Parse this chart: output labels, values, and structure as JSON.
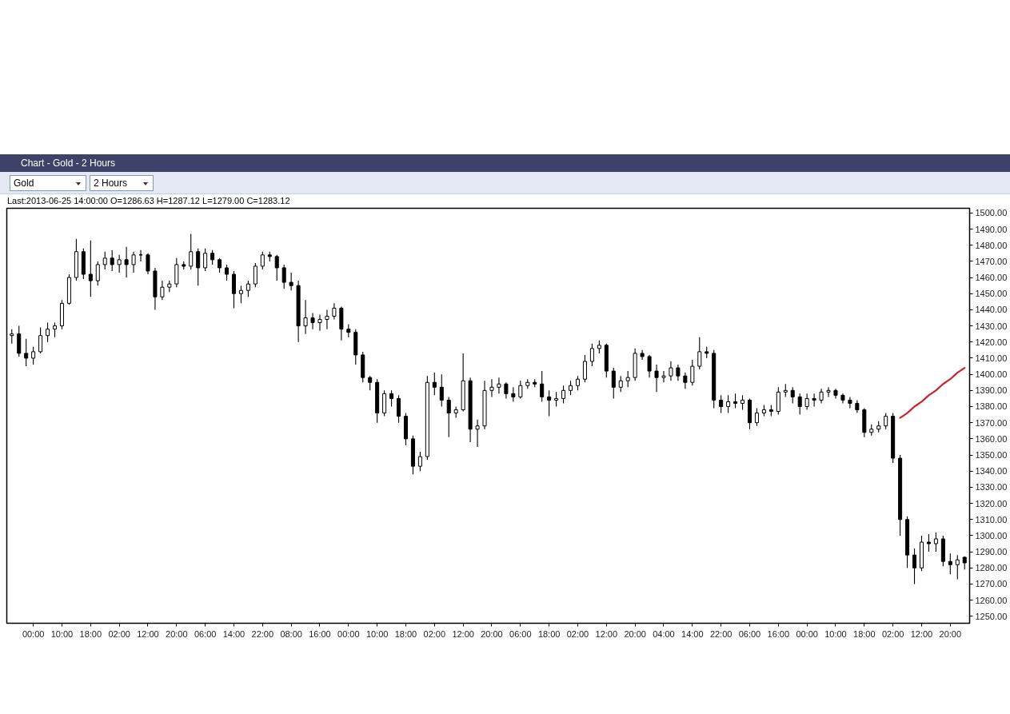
{
  "chart_data": {
    "type": "candlestick",
    "title": "Chart - Gold - 2 Hours",
    "subtitle": "Last:2013-06-25 14:00:00 O=1286.63 H=1287.12 L=1279.00 C=1283.12",
    "annotations": [
      "Gold",
      "2 Hours"
    ],
    "color": "#000000",
    "categories": [
      null,
      null,
      null,
      "00:00",
      null,
      null,
      null,
      "10:00",
      null,
      null,
      null,
      "18:00",
      null,
      null,
      null,
      "02:00",
      null,
      null,
      null,
      "12:00",
      null,
      null,
      null,
      "20:00",
      null,
      null,
      null,
      "06:00",
      null,
      null,
      null,
      "14:00",
      null,
      null,
      null,
      "22:00",
      null,
      null,
      null,
      "08:00",
      null,
      null,
      null,
      "16:00",
      null,
      null,
      null,
      "00:00",
      null,
      null,
      null,
      "10:00",
      null,
      null,
      null,
      "18:00",
      null,
      null,
      null,
      "02:00",
      null,
      null,
      null,
      "12:00",
      null,
      null,
      null,
      "20:00",
      null,
      null,
      null,
      "06:00",
      null,
      null,
      null,
      "18:00",
      null,
      null,
      null,
      "02:00",
      null,
      null,
      null,
      "12:00",
      null,
      null,
      null,
      "20:00",
      null,
      null,
      null,
      "04:00",
      null,
      null,
      null,
      "14:00",
      null,
      null,
      null,
      "22:00",
      null,
      null,
      null,
      "06:00",
      null,
      null,
      null,
      "16:00",
      null,
      null,
      null,
      "00:00",
      null,
      null,
      null,
      "10:00",
      null,
      null,
      null,
      "18:00",
      null,
      null,
      null,
      "02:00",
      null,
      null,
      null,
      "12:00",
      null,
      null,
      null,
      "20:00",
      null,
      null
    ],
    "ohlc": [
      [
        1424,
        1428,
        1419,
        1425
      ],
      [
        1425,
        1430,
        1411,
        1413
      ],
      [
        1413,
        1422,
        1405,
        1410
      ],
      [
        1410,
        1417,
        1406,
        1414
      ],
      [
        1414,
        1429,
        1413,
        1424
      ],
      [
        1424,
        1432,
        1420,
        1428
      ],
      [
        1428,
        1432,
        1423,
        1430
      ],
      [
        1430,
        1446,
        1428,
        1444
      ],
      [
        1444,
        1462,
        1443,
        1460
      ],
      [
        1460,
        1484,
        1458,
        1476
      ],
      [
        1476,
        1478,
        1459,
        1462
      ],
      [
        1462,
        1483,
        1448,
        1458
      ],
      [
        1458,
        1470,
        1455,
        1468
      ],
      [
        1468,
        1476,
        1465,
        1472
      ],
      [
        1472,
        1477,
        1464,
        1468
      ],
      [
        1468,
        1474,
        1463,
        1471
      ],
      [
        1471,
        1479,
        1460,
        1468
      ],
      [
        1468,
        1476,
        1463,
        1474
      ],
      [
        1474,
        1477,
        1470,
        1474
      ],
      [
        1474,
        1475,
        1462,
        1464
      ],
      [
        1464,
        1466,
        1440,
        1448
      ],
      [
        1448,
        1458,
        1446,
        1454
      ],
      [
        1454,
        1458,
        1451,
        1456
      ],
      [
        1456,
        1472,
        1454,
        1468
      ],
      [
        1468,
        1470,
        1465,
        1467
      ],
      [
        1467,
        1487,
        1465,
        1476
      ],
      [
        1476,
        1478,
        1455,
        1466
      ],
      [
        1466,
        1478,
        1464,
        1475
      ],
      [
        1475,
        1477,
        1468,
        1471
      ],
      [
        1471,
        1472,
        1463,
        1466
      ],
      [
        1466,
        1468,
        1458,
        1462
      ],
      [
        1462,
        1464,
        1441,
        1450
      ],
      [
        1450,
        1455,
        1444,
        1452
      ],
      [
        1452,
        1458,
        1448,
        1456
      ],
      [
        1456,
        1469,
        1454,
        1467
      ],
      [
        1467,
        1476,
        1465,
        1474
      ],
      [
        1474,
        1476,
        1470,
        1473
      ],
      [
        1473,
        1474,
        1458,
        1466
      ],
      [
        1466,
        1468,
        1453,
        1457
      ],
      [
        1457,
        1463,
        1452,
        1455
      ],
      [
        1455,
        1458,
        1420,
        1430
      ],
      [
        1430,
        1446,
        1425,
        1435
      ],
      [
        1435,
        1438,
        1428,
        1432
      ],
      [
        1432,
        1437,
        1427,
        1434
      ],
      [
        1434,
        1440,
        1428,
        1436
      ],
      [
        1436,
        1444,
        1434,
        1441
      ],
      [
        1441,
        1442,
        1421,
        1428
      ],
      [
        1428,
        1431,
        1423,
        1426
      ],
      [
        1426,
        1428,
        1406,
        1412
      ],
      [
        1412,
        1414,
        1395,
        1398
      ],
      [
        1398,
        1399,
        1390,
        1395
      ],
      [
        1395,
        1397,
        1370,
        1376
      ],
      [
        1376,
        1390,
        1374,
        1388
      ],
      [
        1388,
        1390,
        1380,
        1385
      ],
      [
        1385,
        1387,
        1370,
        1374
      ],
      [
        1374,
        1376,
        1356,
        1360
      ],
      [
        1360,
        1362,
        1338,
        1343
      ],
      [
        1343,
        1352,
        1340,
        1349
      ],
      [
        1349,
        1399,
        1347,
        1395
      ],
      [
        1395,
        1401,
        1387,
        1392
      ],
      [
        1392,
        1400,
        1380,
        1384
      ],
      [
        1384,
        1386,
        1361,
        1376
      ],
      [
        1376,
        1380,
        1373,
        1378
      ],
      [
        1378,
        1413,
        1377,
        1396
      ],
      [
        1396,
        1398,
        1358,
        1366
      ],
      [
        1366,
        1372,
        1355,
        1368
      ],
      [
        1368,
        1396,
        1366,
        1390
      ],
      [
        1390,
        1397,
        1386,
        1392
      ],
      [
        1392,
        1398,
        1388,
        1394
      ],
      [
        1394,
        1395,
        1385,
        1388
      ],
      [
        1388,
        1392,
        1383,
        1386
      ],
      [
        1386,
        1396,
        1385,
        1393
      ],
      [
        1393,
        1397,
        1391,
        1395
      ],
      [
        1395,
        1397,
        1392,
        1394
      ],
      [
        1394,
        1402,
        1383,
        1386
      ],
      [
        1386,
        1390,
        1374,
        1384
      ],
      [
        1384,
        1389,
        1380,
        1385
      ],
      [
        1385,
        1393,
        1382,
        1390
      ],
      [
        1390,
        1396,
        1387,
        1393
      ],
      [
        1393,
        1399,
        1390,
        1397
      ],
      [
        1397,
        1412,
        1395,
        1408
      ],
      [
        1408,
        1419,
        1405,
        1416
      ],
      [
        1416,
        1421,
        1413,
        1418
      ],
      [
        1418,
        1419,
        1398,
        1402
      ],
      [
        1402,
        1404,
        1385,
        1392
      ],
      [
        1392,
        1399,
        1389,
        1396
      ],
      [
        1396,
        1402,
        1392,
        1398
      ],
      [
        1398,
        1416,
        1396,
        1413
      ],
      [
        1413,
        1415,
        1409,
        1411
      ],
      [
        1411,
        1412,
        1398,
        1402
      ],
      [
        1402,
        1406,
        1389,
        1398
      ],
      [
        1398,
        1402,
        1395,
        1399
      ],
      [
        1399,
        1408,
        1396,
        1404
      ],
      [
        1404,
        1406,
        1396,
        1399
      ],
      [
        1399,
        1401,
        1391,
        1395
      ],
      [
        1395,
        1409,
        1393,
        1405
      ],
      [
        1405,
        1423,
        1403,
        1414
      ],
      [
        1414,
        1417,
        1410,
        1413
      ],
      [
        1413,
        1415,
        1379,
        1384
      ],
      [
        1384,
        1387,
        1376,
        1380
      ],
      [
        1380,
        1387,
        1376,
        1383
      ],
      [
        1383,
        1388,
        1379,
        1382
      ],
      [
        1382,
        1387,
        1378,
        1384
      ],
      [
        1384,
        1385,
        1366,
        1370
      ],
      [
        1370,
        1379,
        1368,
        1376
      ],
      [
        1376,
        1381,
        1374,
        1378
      ],
      [
        1378,
        1381,
        1374,
        1377
      ],
      [
        1377,
        1392,
        1375,
        1389
      ],
      [
        1389,
        1394,
        1386,
        1390
      ],
      [
        1390,
        1392,
        1382,
        1386
      ],
      [
        1386,
        1388,
        1375,
        1380
      ],
      [
        1380,
        1388,
        1378,
        1385
      ],
      [
        1385,
        1388,
        1380,
        1384
      ],
      [
        1384,
        1391,
        1382,
        1389
      ],
      [
        1389,
        1392,
        1386,
        1390
      ],
      [
        1390,
        1391,
        1385,
        1387
      ],
      [
        1387,
        1388,
        1382,
        1384
      ],
      [
        1384,
        1386,
        1379,
        1382
      ],
      [
        1382,
        1384,
        1376,
        1378
      ],
      [
        1378,
        1379,
        1361,
        1364
      ],
      [
        1364,
        1369,
        1362,
        1366
      ],
      [
        1366,
        1371,
        1364,
        1368
      ],
      [
        1368,
        1376,
        1366,
        1374
      ],
      [
        1374,
        1376,
        1345,
        1348
      ],
      [
        1348,
        1350,
        1300,
        1310
      ],
      [
        1310,
        1312,
        1280,
        1288
      ],
      [
        1288,
        1292,
        1270,
        1280
      ],
      [
        1280,
        1300,
        1278,
        1296
      ],
      [
        1296,
        1301,
        1290,
        1295
      ],
      [
        1295,
        1302,
        1290,
        1298
      ],
      [
        1298,
        1300,
        1281,
        1284
      ],
      [
        1284,
        1289,
        1276,
        1282
      ],
      [
        1282,
        1288,
        1273,
        1285
      ],
      [
        1286.63,
        1287.12,
        1279.0,
        1283.12
      ]
    ],
    "series": [
      {
        "type": "line",
        "color": "#cc2229",
        "values": [
          null,
          null,
          null,
          null,
          null,
          null,
          null,
          null,
          null,
          null,
          null,
          null,
          null,
          null,
          null,
          null,
          null,
          null,
          null,
          null,
          null,
          null,
          null,
          null,
          null,
          null,
          null,
          null,
          null,
          null,
          null,
          null,
          null,
          null,
          null,
          null,
          null,
          null,
          null,
          null,
          null,
          null,
          null,
          null,
          null,
          null,
          null,
          null,
          null,
          null,
          null,
          null,
          null,
          null,
          null,
          null,
          null,
          null,
          null,
          null,
          null,
          null,
          null,
          null,
          null,
          null,
          null,
          null,
          null,
          null,
          null,
          null,
          null,
          null,
          null,
          null,
          null,
          null,
          null,
          null,
          null,
          null,
          null,
          null,
          null,
          null,
          null,
          null,
          null,
          null,
          null,
          null,
          null,
          null,
          null,
          null,
          null,
          null,
          null,
          null,
          null,
          null,
          null,
          null,
          null,
          null,
          null,
          null,
          null,
          null,
          null,
          null,
          null,
          null,
          null,
          null,
          null,
          null,
          null,
          null,
          null,
          null,
          null,
          null,
          1373,
          1376,
          1380,
          1383,
          1387,
          1390,
          1394,
          1397,
          1401,
          1404
        ]
      }
    ],
    "ylim": [
      1245.7,
      1502.9
    ],
    "yticks": [
      {
        "value": 1250,
        "label": "1250.00"
      },
      {
        "value": 1260,
        "label": "1260.00"
      },
      {
        "value": 1270,
        "label": "1270.00"
      },
      {
        "value": 1280,
        "label": "1280.00"
      },
      {
        "value": 1290,
        "label": "1290.00"
      },
      {
        "value": 1300,
        "label": "1300.00"
      },
      {
        "value": 1310,
        "label": "1310.00"
      },
      {
        "value": 1320,
        "label": "1320.00"
      },
      {
        "value": 1330,
        "label": "1330.00"
      },
      {
        "value": 1340,
        "label": "1340.00"
      },
      {
        "value": 1350,
        "label": "1350.00"
      },
      {
        "value": 1360,
        "label": "1360.00"
      },
      {
        "value": 1370,
        "label": "1370.00"
      },
      {
        "value": 1380,
        "label": "1380.00"
      },
      {
        "value": 1390,
        "label": "1390.00"
      },
      {
        "value": 1400,
        "label": "1400.00"
      },
      {
        "value": 1410,
        "label": "1410.00"
      },
      {
        "value": 1420,
        "label": "1420.00"
      },
      {
        "value": 1430,
        "label": "1430.00"
      },
      {
        "value": 1440,
        "label": "1440.00"
      },
      {
        "value": 1450,
        "label": "1450.00"
      },
      {
        "value": 1460,
        "label": "1460.00"
      },
      {
        "value": 1470,
        "label": "1470.00"
      },
      {
        "value": 1480,
        "label": "1480.00"
      },
      {
        "value": 1490,
        "label": "1490.00"
      },
      {
        "value": 1500,
        "label": "1500.00"
      }
    ]
  }
}
